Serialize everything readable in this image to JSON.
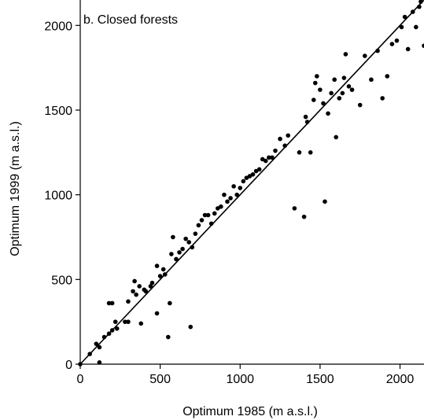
{
  "chart_data": {
    "type": "scatter",
    "title": "b. Closed forests",
    "xlabel": "Optimum 1985 (m a.s.l.)",
    "ylabel": "Optimum 1999 (m a.s.l.)",
    "xlim": [
      0,
      2150
    ],
    "ylim": [
      0,
      2150
    ],
    "xticks": [
      0,
      500,
      1000,
      1500,
      2000
    ],
    "yticks": [
      0,
      500,
      1000,
      1500,
      2000
    ],
    "xtick_labels": [
      "0",
      "500",
      "1000",
      "1500",
      "2000"
    ],
    "ytick_labels": [
      "0",
      "500",
      "1000",
      "1500",
      "2000"
    ],
    "grid": false,
    "line": {
      "x": [
        0,
        2150
      ],
      "y": [
        0,
        2150
      ]
    },
    "points": [
      [
        0,
        0
      ],
      [
        60,
        60
      ],
      [
        100,
        120
      ],
      [
        120,
        100
      ],
      [
        120,
        10
      ],
      [
        150,
        160
      ],
      [
        180,
        180
      ],
      [
        180,
        360
      ],
      [
        200,
        200
      ],
      [
        200,
        360
      ],
      [
        220,
        250
      ],
      [
        230,
        210
      ],
      [
        280,
        250
      ],
      [
        300,
        250
      ],
      [
        300,
        370
      ],
      [
        330,
        430
      ],
      [
        340,
        490
      ],
      [
        350,
        410
      ],
      [
        370,
        460
      ],
      [
        380,
        240
      ],
      [
        400,
        440
      ],
      [
        410,
        430
      ],
      [
        440,
        460
      ],
      [
        450,
        480
      ],
      [
        480,
        300
      ],
      [
        480,
        580
      ],
      [
        500,
        520
      ],
      [
        520,
        560
      ],
      [
        530,
        530
      ],
      [
        550,
        160
      ],
      [
        560,
        360
      ],
      [
        570,
        650
      ],
      [
        580,
        750
      ],
      [
        600,
        620
      ],
      [
        620,
        660
      ],
      [
        640,
        680
      ],
      [
        660,
        740
      ],
      [
        680,
        720
      ],
      [
        690,
        220
      ],
      [
        700,
        690
      ],
      [
        720,
        770
      ],
      [
        740,
        820
      ],
      [
        760,
        850
      ],
      [
        780,
        880
      ],
      [
        800,
        880
      ],
      [
        820,
        830
      ],
      [
        840,
        890
      ],
      [
        860,
        920
      ],
      [
        880,
        930
      ],
      [
        900,
        1000
      ],
      [
        920,
        960
      ],
      [
        940,
        980
      ],
      [
        960,
        1050
      ],
      [
        980,
        1000
      ],
      [
        1000,
        1040
      ],
      [
        1020,
        1080
      ],
      [
        1040,
        1100
      ],
      [
        1060,
        1110
      ],
      [
        1080,
        1120
      ],
      [
        1100,
        1140
      ],
      [
        1120,
        1150
      ],
      [
        1140,
        1210
      ],
      [
        1160,
        1200
      ],
      [
        1180,
        1220
      ],
      [
        1200,
        1220
      ],
      [
        1220,
        1260
      ],
      [
        1250,
        1330
      ],
      [
        1280,
        1290
      ],
      [
        1300,
        1350
      ],
      [
        1340,
        920
      ],
      [
        1370,
        1250
      ],
      [
        1400,
        870
      ],
      [
        1410,
        1460
      ],
      [
        1420,
        1430
      ],
      [
        1440,
        1250
      ],
      [
        1460,
        1560
      ],
      [
        1470,
        1660
      ],
      [
        1480,
        1700
      ],
      [
        1500,
        1620
      ],
      [
        1520,
        1540
      ],
      [
        1530,
        960
      ],
      [
        1550,
        1480
      ],
      [
        1570,
        1600
      ],
      [
        1590,
        1680
      ],
      [
        1600,
        1340
      ],
      [
        1620,
        1570
      ],
      [
        1640,
        1600
      ],
      [
        1650,
        1690
      ],
      [
        1660,
        1830
      ],
      [
        1680,
        1640
      ],
      [
        1700,
        1620
      ],
      [
        1750,
        1530
      ],
      [
        1780,
        1820
      ],
      [
        1820,
        1680
      ],
      [
        1860,
        1850
      ],
      [
        1890,
        1570
      ],
      [
        1920,
        1700
      ],
      [
        1950,
        1890
      ],
      [
        1980,
        1910
      ],
      [
        2010,
        1990
      ],
      [
        2030,
        2050
      ],
      [
        2050,
        1860
      ],
      [
        2080,
        2080
      ],
      [
        2100,
        1990
      ],
      [
        2120,
        2110
      ],
      [
        2130,
        2140
      ],
      [
        2150,
        1880
      ]
    ]
  }
}
